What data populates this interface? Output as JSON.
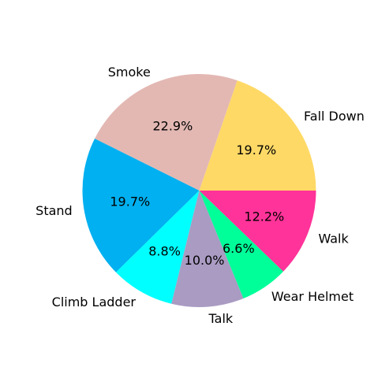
{
  "chart_data": {
    "type": "pie",
    "title": "",
    "start_angle_deg": 0,
    "direction": "counterclockwise",
    "slices": [
      {
        "label": "Fall Down",
        "value": 19.7,
        "pct_label": "19.7%",
        "color": "#ffd966"
      },
      {
        "label": "Smoke",
        "value": 22.9,
        "pct_label": "22.9%",
        "color": "#e3b8b3"
      },
      {
        "label": "Stand",
        "value": 19.7,
        "pct_label": "19.7%",
        "color": "#00b0f0"
      },
      {
        "label": "Climb Ladder",
        "value": 8.8,
        "pct_label": "8.8%",
        "color": "#00ffff"
      },
      {
        "label": "Talk",
        "value": 10.0,
        "pct_label": "10.0%",
        "color": "#a99bc2"
      },
      {
        "label": "Wear Helmet",
        "value": 6.6,
        "pct_label": "6.6%",
        "color": "#00ff99"
      },
      {
        "label": "Walk",
        "value": 12.2,
        "pct_label": "12.2%",
        "color": "#ff3399"
      }
    ]
  }
}
